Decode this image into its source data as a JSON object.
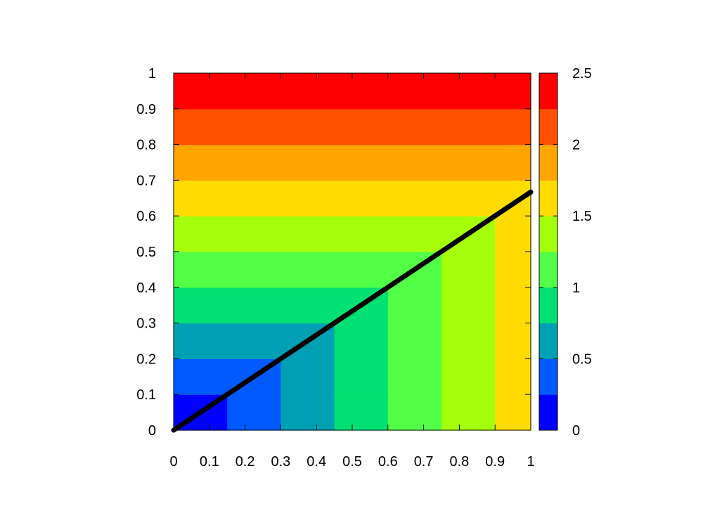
{
  "chart_data": {
    "type": "heatmap",
    "title": "",
    "xlabel": "",
    "ylabel": "",
    "xlim": [
      0,
      1
    ],
    "ylim": [
      0,
      1
    ],
    "x_ticks": [
      "0",
      "0.1",
      "0.2",
      "0.3",
      "0.4",
      "0.5",
      "0.6",
      "0.7",
      "0.8",
      "0.9",
      "1"
    ],
    "y_ticks": [
      "0",
      "0.1",
      "0.2",
      "0.3",
      "0.4",
      "0.5",
      "0.6",
      "0.7",
      "0.8",
      "0.9",
      "1"
    ],
    "levels": [
      0,
      0.25,
      0.5,
      0.75,
      1.0,
      1.25,
      1.5,
      1.75,
      2.0,
      2.25,
      2.5
    ],
    "level_colors": [
      "#0000ff",
      "#005aff",
      "#00a0b4",
      "#00e173",
      "#50ff46",
      "#a5ff0a",
      "#ffdc00",
      "#ffa500",
      "#ff5000",
      "#ff0000"
    ],
    "x_bands": [
      0,
      0.15,
      0.3,
      0.45,
      0.6,
      0.75,
      0.9,
      1.0
    ],
    "y_bands": [
      0,
      0.1,
      0.2,
      0.3,
      0.4,
      0.5,
      0.6,
      0.7,
      0.8,
      0.9,
      1.0
    ],
    "line": {
      "x": [
        0,
        1
      ],
      "y": [
        0,
        0.667
      ],
      "color": "#000000"
    },
    "colorbar": {
      "range": [
        0,
        2.5
      ],
      "ticks": [
        "0",
        "0.5",
        "1",
        "1.5",
        "2",
        "2.5"
      ]
    }
  }
}
